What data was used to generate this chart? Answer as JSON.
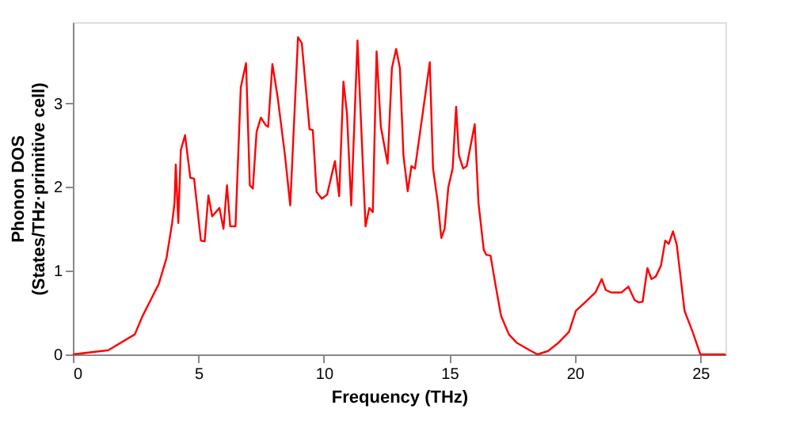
{
  "chart_data": {
    "type": "line",
    "xlabel": "Frequency (THz)",
    "ylabel": "Phonon DOS\n(States/THz·primitive cell)",
    "xlim": [
      0,
      26
    ],
    "ylim": [
      0,
      3.97
    ],
    "xticks": [
      0,
      5,
      10,
      15,
      20,
      25
    ],
    "yticks": [
      0,
      1,
      2,
      3
    ],
    "grid": false,
    "marker": "none",
    "line_style": "solid",
    "series": [
      {
        "color": "#ff0000",
        "x": [
          0,
          1.41,
          2.47,
          2.78,
          3.1,
          3.42,
          3.73,
          3.95,
          4.05,
          4.1,
          4.2,
          4.3,
          4.47,
          4.68,
          4.83,
          5.1,
          5.25,
          5.4,
          5.55,
          5.84,
          6.0,
          6.14,
          6.27,
          6.48,
          6.69,
          6.9,
          7.05,
          7.17,
          7.32,
          7.49,
          7.68,
          7.78,
          7.95,
          8.16,
          8.45,
          8.66,
          8.97,
          9.12,
          9.43,
          9.56,
          9.71,
          9.92,
          10.13,
          10.44,
          10.61,
          10.78,
          10.92,
          11.09,
          11.34,
          11.66,
          11.81,
          11.95,
          12.1,
          12.27,
          12.54,
          12.71,
          12.88,
          13.03,
          13.17,
          13.34,
          13.49,
          13.63,
          13.91,
          14.22,
          14.35,
          14.54,
          14.68,
          14.81,
          14.96,
          15.13,
          15.27,
          15.38,
          15.55,
          15.69,
          16.01,
          16.16,
          16.37,
          16.47,
          16.64,
          16.85,
          17.06,
          17.37,
          17.68,
          18.2,
          18.51,
          18.93,
          19.35,
          19.77,
          20.04,
          20.4,
          20.82,
          21.07,
          21.23,
          21.44,
          21.86,
          22.13,
          22.38,
          22.55,
          22.7,
          22.89,
          23.05,
          23.22,
          23.43,
          23.6,
          23.74,
          23.91,
          24.06,
          24.37,
          24.69,
          25.0,
          26.0
        ],
        "values": [
          0,
          0.05,
          0.24,
          0.46,
          0.65,
          0.84,
          1.15,
          1.56,
          1.81,
          2.27,
          1.57,
          2.44,
          2.62,
          2.11,
          2.1,
          1.36,
          1.35,
          1.9,
          1.65,
          1.75,
          1.5,
          2.02,
          1.53,
          1.53,
          3.19,
          3.48,
          2.02,
          1.98,
          2.66,
          2.83,
          2.74,
          2.72,
          3.47,
          3.07,
          2.38,
          1.78,
          3.79,
          3.72,
          2.69,
          2.68,
          1.94,
          1.86,
          1.91,
          2.31,
          1.89,
          3.26,
          2.88,
          1.78,
          3.75,
          1.53,
          1.75,
          1.7,
          3.62,
          2.72,
          2.28,
          3.42,
          3.65,
          3.42,
          2.38,
          1.95,
          2.25,
          2.22,
          2.82,
          3.49,
          2.22,
          1.81,
          1.39,
          1.5,
          2.0,
          2.22,
          2.96,
          2.38,
          2.22,
          2.25,
          2.75,
          1.81,
          1.25,
          1.19,
          1.18,
          0.81,
          0.46,
          0.24,
          0.14,
          0.05,
          0,
          0.04,
          0.14,
          0.27,
          0.52,
          0.62,
          0.74,
          0.9,
          0.77,
          0.74,
          0.74,
          0.81,
          0.65,
          0.62,
          0.63,
          1.03,
          0.9,
          0.93,
          1.06,
          1.36,
          1.32,
          1.47,
          1.31,
          0.52,
          0.27,
          0,
          0
        ]
      }
    ]
  }
}
